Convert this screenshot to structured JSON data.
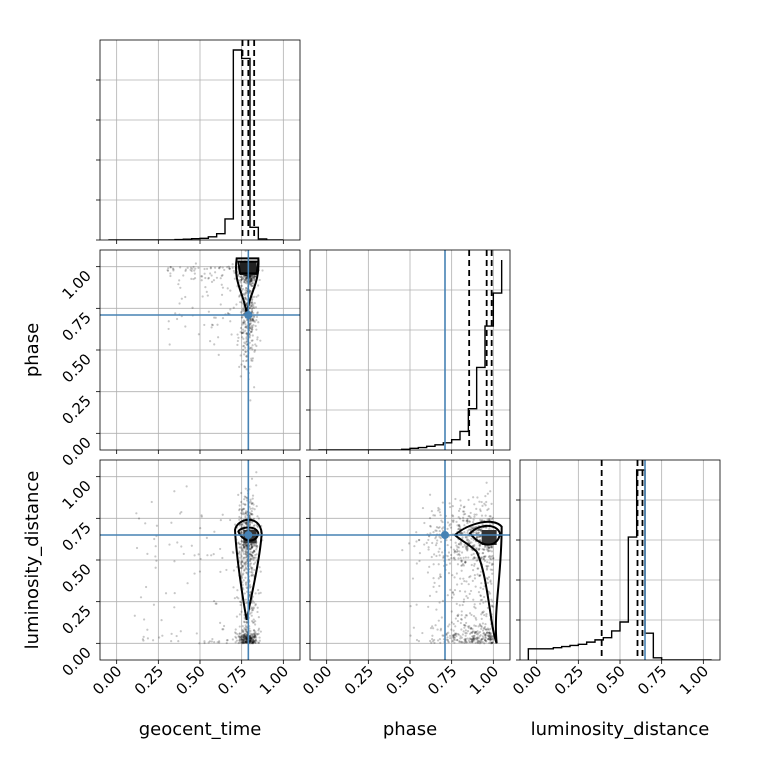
{
  "chart_data": {
    "type": "corner",
    "parameters": [
      "geocent_time",
      "phase",
      "luminosity_distance"
    ],
    "tick_labels": [
      "0.00",
      "0.25",
      "0.50",
      "0.75",
      "1.00"
    ],
    "tick_values": [
      0,
      0.25,
      0.5,
      0.75,
      1.0
    ],
    "axis_range": [
      -0.1,
      1.1
    ],
    "grid": true,
    "truth_color": "#4682b4",
    "truth_values": {
      "geocent_time": 0.79,
      "phase": 0.71,
      "luminosity_distance": 0.65
    },
    "quantile_lines": {
      "geocent_time": [
        0.755,
        0.79,
        0.825
      ],
      "phase": [
        0.855,
        0.96,
        0.99
      ],
      "luminosity_distance": [
        0.39,
        0.605,
        0.635
      ]
    },
    "histograms": {
      "geocent_time": {
        "bin_edges": [
          -0.05,
          0.0,
          0.05,
          0.1,
          0.15,
          0.2,
          0.25,
          0.3,
          0.35,
          0.4,
          0.45,
          0.5,
          0.55,
          0.6,
          0.65,
          0.7,
          0.75,
          0.8,
          0.85,
          0.9,
          0.95,
          1.0
        ],
        "counts": [
          0,
          0,
          0,
          0,
          0,
          0,
          0,
          0,
          0.002,
          0.004,
          0.006,
          0.008,
          0.015,
          0.03,
          0.1,
          0.9,
          0.86,
          0.06,
          0.005,
          0,
          0
        ]
      },
      "phase": {
        "bin_edges": [
          -0.05,
          0.0,
          0.05,
          0.1,
          0.15,
          0.2,
          0.25,
          0.3,
          0.35,
          0.4,
          0.45,
          0.5,
          0.55,
          0.6,
          0.65,
          0.7,
          0.75,
          0.8,
          0.85,
          0.9,
          0.95,
          1.0,
          1.05
        ],
        "counts": [
          0,
          0,
          0,
          0,
          0,
          0,
          0,
          0,
          0,
          0,
          0.003,
          0.008,
          0.012,
          0.018,
          0.025,
          0.035,
          0.05,
          0.09,
          0.2,
          0.4,
          0.6,
          0.76,
          0.92
        ]
      },
      "luminosity_distance": {
        "bin_edges": [
          -0.05,
          0.0,
          0.05,
          0.1,
          0.15,
          0.2,
          0.25,
          0.3,
          0.35,
          0.4,
          0.45,
          0.5,
          0.55,
          0.6,
          0.65,
          0.7,
          0.75,
          0.8,
          0.85,
          0.9,
          0.95,
          1.0,
          1.05
        ],
        "counts": [
          0.05,
          0.05,
          0.05,
          0.055,
          0.06,
          0.065,
          0.07,
          0.08,
          0.09,
          0.1,
          0.13,
          0.17,
          0.55,
          0.85,
          0.12,
          0.01,
          0,
          0,
          0,
          0,
          0,
          0
        ]
      }
    }
  }
}
